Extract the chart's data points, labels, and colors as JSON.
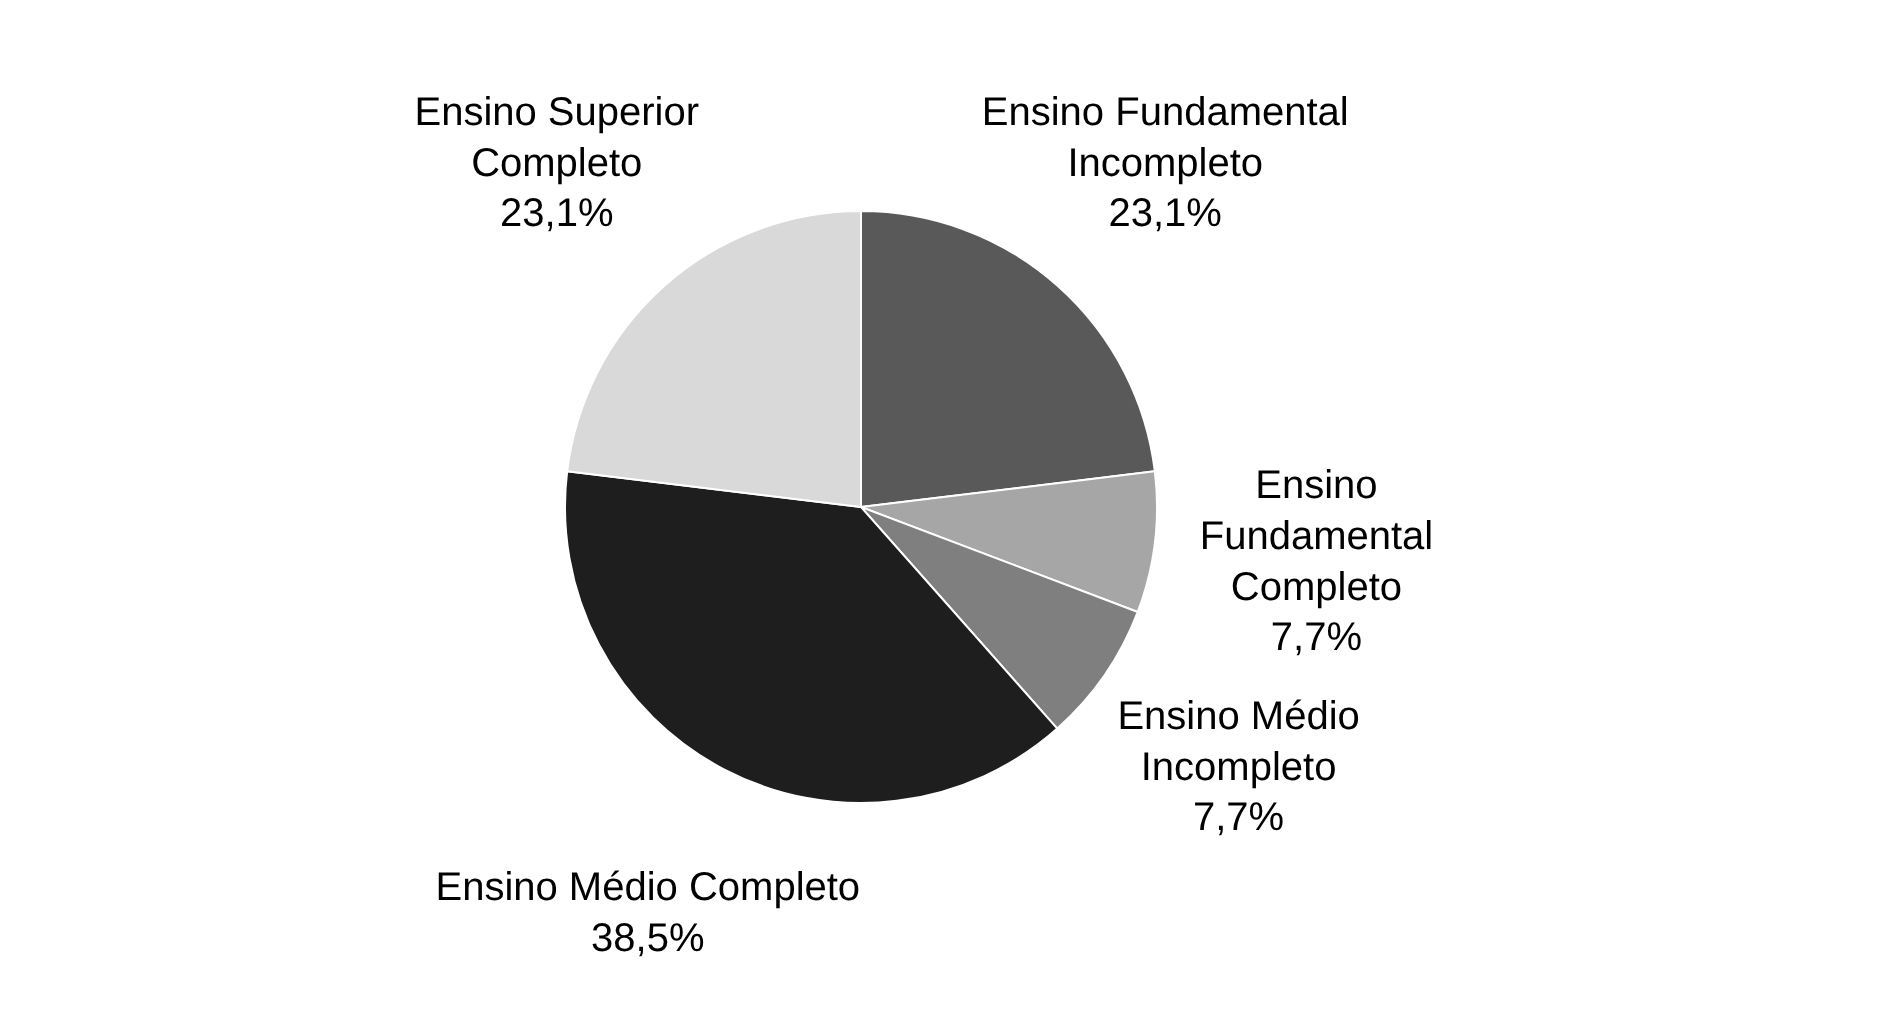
{
  "chart_data": {
    "type": "pie",
    "categories": [
      "Ensino Fundamental Incompleto",
      "Ensino Fundamental Completo",
      "Ensino Médio Incompleto",
      "Ensino Médio Completo",
      "Ensino Superior Completo"
    ],
    "values": [
      23.1,
      7.7,
      7.7,
      38.5,
      23.1
    ],
    "colors": [
      "#595959",
      "#a6a6a6",
      "#7f7f7f",
      "#1e1e1e",
      "#d9d9d9"
    ],
    "value_labels": [
      "23,1%",
      "7,7%",
      "7,7%",
      "38,5%",
      "23,1%"
    ]
  }
}
